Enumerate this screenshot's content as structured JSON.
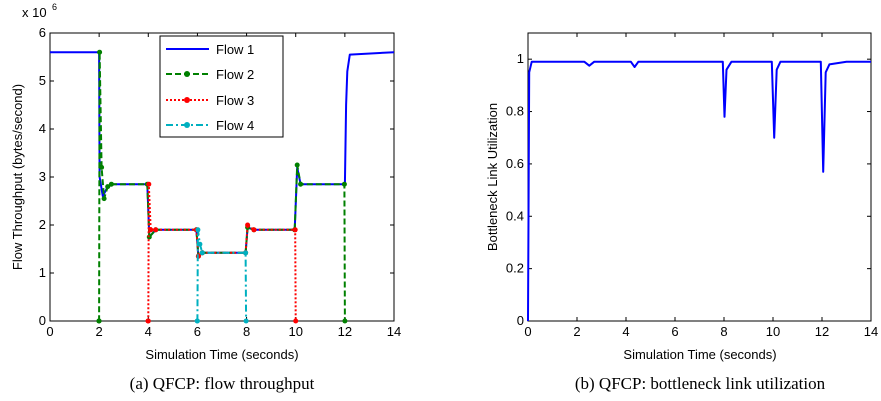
{
  "chart_data": [
    {
      "type": "line",
      "caption": "(a) QFCP: flow throughput",
      "xlabel": "Simulation Time (seconds)",
      "ylabel": "Flow Throughput (bytes/second)",
      "multiplier": "x 10",
      "multiplier_exp": "6",
      "xlim": [
        0,
        14
      ],
      "ylim": [
        0,
        6
      ],
      "xticks": [
        "0",
        "2",
        "4",
        "6",
        "8",
        "10",
        "12",
        "14"
      ],
      "yticks": [
        "0",
        "1",
        "2",
        "3",
        "4",
        "5",
        "6"
      ],
      "legend_position": "top-center",
      "series": [
        {
          "name": "Flow 1",
          "color": "#0000ff",
          "style": "solid",
          "points": [
            [
              0,
              5.6
            ],
            [
              0.01,
              5.6
            ],
            [
              2.0,
              5.6
            ],
            [
              2.02,
              3.0
            ],
            [
              2.15,
              2.6
            ],
            [
              2.3,
              2.75
            ],
            [
              2.5,
              2.85
            ],
            [
              3.0,
              2.85
            ],
            [
              3.96,
              2.85
            ],
            [
              4.04,
              1.75
            ],
            [
              4.3,
              1.9
            ],
            [
              5.96,
              1.9
            ],
            [
              6.04,
              1.35
            ],
            [
              6.2,
              1.42
            ],
            [
              7.96,
              1.42
            ],
            [
              8.04,
              1.95
            ],
            [
              8.3,
              1.9
            ],
            [
              9.96,
              1.9
            ],
            [
              10.06,
              3.2
            ],
            [
              10.2,
              2.85
            ],
            [
              12.0,
              2.85
            ],
            [
              12.05,
              4.5
            ],
            [
              12.1,
              5.2
            ],
            [
              12.2,
              5.55
            ],
            [
              14.0,
              5.6
            ]
          ]
        },
        {
          "name": "Flow 2",
          "color": "#008000",
          "style": "dashed",
          "points": [
            [
              1.99,
              0
            ],
            [
              2.0,
              0
            ],
            [
              2.02,
              5.6
            ],
            [
              2.1,
              3.2
            ],
            [
              2.2,
              2.55
            ],
            [
              2.35,
              2.8
            ],
            [
              2.5,
              2.85
            ],
            [
              3.96,
              2.85
            ],
            [
              4.04,
              1.75
            ],
            [
              4.3,
              1.9
            ],
            [
              5.96,
              1.9
            ],
            [
              6.04,
              1.35
            ],
            [
              6.2,
              1.42
            ],
            [
              7.96,
              1.42
            ],
            [
              8.04,
              1.95
            ],
            [
              8.3,
              1.9
            ],
            [
              9.96,
              1.9
            ],
            [
              10.06,
              3.25
            ],
            [
              10.2,
              2.85
            ],
            [
              11.98,
              2.85
            ],
            [
              12.0,
              0
            ]
          ]
        },
        {
          "name": "Flow 3",
          "color": "#ff0000",
          "style": "dotted",
          "points": [
            [
              3.99,
              0
            ],
            [
              4.0,
              0
            ],
            [
              4.02,
              2.85
            ],
            [
              4.1,
              1.9
            ],
            [
              4.3,
              1.9
            ],
            [
              5.96,
              1.9
            ],
            [
              6.04,
              1.35
            ],
            [
              6.2,
              1.42
            ],
            [
              7.96,
              1.42
            ],
            [
              8.04,
              2.0
            ],
            [
              8.3,
              1.9
            ],
            [
              9.98,
              1.9
            ],
            [
              10.0,
              0
            ]
          ]
        },
        {
          "name": "Flow 4",
          "color": "#00b0c0",
          "style": "dashdot",
          "points": [
            [
              5.99,
              0
            ],
            [
              6.0,
              0
            ],
            [
              6.02,
              1.9
            ],
            [
              6.1,
              1.6
            ],
            [
              6.2,
              1.42
            ],
            [
              7.96,
              1.42
            ],
            [
              7.98,
              0
            ]
          ]
        }
      ]
    },
    {
      "type": "line",
      "caption": "(b) QFCP: bottleneck link utilization",
      "xlabel": "Simulation Time (seconds)",
      "ylabel": "Bottleneck Link Utilization",
      "xlim": [
        0,
        14
      ],
      "ylim": [
        0,
        1.1
      ],
      "xticks": [
        "0",
        "2",
        "4",
        "6",
        "8",
        "10",
        "12",
        "14"
      ],
      "yticks": [
        "0",
        "0.2",
        "0.4",
        "0.6",
        "0.8",
        "1"
      ],
      "series": [
        {
          "color": "#0000ff",
          "style": "solid",
          "points": [
            [
              0,
              0
            ],
            [
              0.05,
              0.95
            ],
            [
              0.15,
              0.99
            ],
            [
              1.0,
              0.99
            ],
            [
              2.0,
              0.99
            ],
            [
              2.3,
              0.99
            ],
            [
              2.5,
              0.975
            ],
            [
              2.7,
              0.99
            ],
            [
              4.2,
              0.99
            ],
            [
              4.35,
              0.97
            ],
            [
              4.5,
              0.99
            ],
            [
              7.95,
              0.99
            ],
            [
              8.02,
              0.78
            ],
            [
              8.1,
              0.96
            ],
            [
              8.3,
              0.99
            ],
            [
              9.95,
              0.99
            ],
            [
              10.05,
              0.7
            ],
            [
              10.15,
              0.96
            ],
            [
              10.3,
              0.99
            ],
            [
              11.95,
              0.99
            ],
            [
              12.05,
              0.57
            ],
            [
              12.15,
              0.95
            ],
            [
              12.3,
              0.98
            ],
            [
              13.0,
              0.99
            ],
            [
              14.0,
              0.99
            ]
          ]
        }
      ]
    }
  ]
}
